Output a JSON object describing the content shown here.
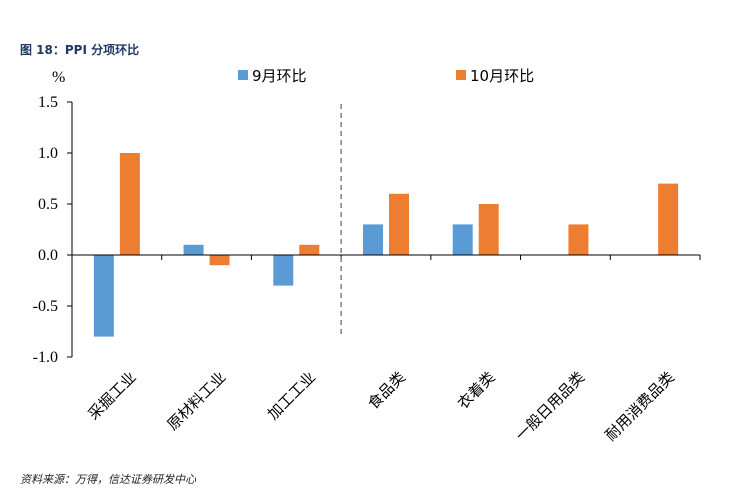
{
  "figure": {
    "title": "图 18：PPI 分项环比",
    "source": "资料来源：万得，信达证券研发中心"
  },
  "colors": {
    "series1": "#5b9bd5",
    "series2": "#ed7d31",
    "title": "#1f3864",
    "divider": "#808080"
  },
  "chart_data": {
    "type": "bar",
    "title": "",
    "ylabel": "%",
    "xlabel": "",
    "ylim": [
      -1.0,
      1.5
    ],
    "yticks": [
      "1.5",
      "1.0",
      "0.5",
      "0.0",
      "-0.5",
      "-1.0"
    ],
    "ytick_values": [
      1.5,
      1.0,
      0.5,
      0.0,
      -0.5,
      -1.0
    ],
    "legend_position": "top",
    "grid": false,
    "categories": [
      "采掘工业",
      "原材料工业",
      "加工工业",
      "食品类",
      "衣着类",
      "一般日用品类",
      "耐用消费品类"
    ],
    "series": [
      {
        "name": "9月环比",
        "values": [
          -0.8,
          0.1,
          -0.3,
          0.3,
          0.3,
          0.0,
          0.0
        ]
      },
      {
        "name": "10月环比",
        "values": [
          1.0,
          -0.1,
          0.1,
          0.6,
          0.5,
          0.3,
          0.7
        ]
      }
    ]
  }
}
